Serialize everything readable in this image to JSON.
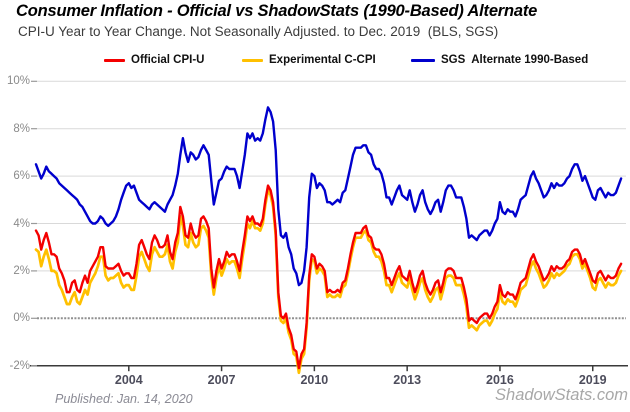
{
  "chart_data": {
    "type": "line",
    "title": "Consumer Inflation - Official vs ShadowStats (1990-Based) Alternate",
    "subtitle": "CPI-U Year to Year Change. Not Seasonally Adjusted. to Dec. 2019  (BLS, SGS)",
    "legend_position": "top",
    "grid": "horizontal-only",
    "x_start_year": 2001,
    "x_step_months": 1,
    "x_range_label": "Jan 2001 to Dec. 2019",
    "y_axis": {
      "min": -2,
      "max": 10,
      "step": 2,
      "unit": "%",
      "values": [
        10,
        8,
        6,
        4,
        2,
        0,
        -2
      ],
      "labels": [
        "10%",
        "8%",
        "6%",
        "4%",
        "2%",
        "0%",
        "-2%"
      ],
      "zero_line": 0
    },
    "x_axis": {
      "ticks": [
        {
          "label": "2004",
          "year": 2004
        },
        {
          "label": "2007",
          "year": 2007
        },
        {
          "label": "2010",
          "year": 2010
        },
        {
          "label": "2013",
          "year": 2013
        },
        {
          "label": "2016",
          "year": 2016
        },
        {
          "label": "2019",
          "year": 2019
        }
      ]
    },
    "series": [
      {
        "name": "Experimental C-CPI",
        "color": "#ffc000",
        "values": [
          2.9,
          2.8,
          2.2,
          2.6,
          2.9,
          2.5,
          2.0,
          2.0,
          1.9,
          1.4,
          1.2,
          0.9,
          0.6,
          0.6,
          0.9,
          1.1,
          0.7,
          0.6,
          0.9,
          1.2,
          1.0,
          1.5,
          1.7,
          1.9,
          2.2,
          2.6,
          2.6,
          1.8,
          1.6,
          1.7,
          1.7,
          1.8,
          1.9,
          1.5,
          1.3,
          1.4,
          1.4,
          1.2,
          1.2,
          1.8,
          2.6,
          2.8,
          2.5,
          2.2,
          2.0,
          2.7,
          3.0,
          2.8,
          2.6,
          2.6,
          2.7,
          3.1,
          2.4,
          2.1,
          2.8,
          3.2,
          4.3,
          3.9,
          3.1,
          3.0,
          3.6,
          3.2,
          3.0,
          3.1,
          3.8,
          3.9,
          3.7,
          3.4,
          1.8,
          1.0,
          1.7,
          2.2,
          1.8,
          2.1,
          2.5,
          2.3,
          2.4,
          2.4,
          2.1,
          1.7,
          2.5,
          3.2,
          4.0,
          3.8,
          4.1,
          3.8,
          3.8,
          3.7,
          4.0,
          4.8,
          5.4,
          5.2,
          4.7,
          3.5,
          0.9,
          -0.1,
          -0.2,
          0.0,
          -0.6,
          -0.9,
          -1.5,
          -1.6,
          -2.3,
          -1.7,
          -1.5,
          -0.4,
          1.6,
          2.5,
          2.4,
          1.9,
          2.1,
          2.0,
          1.8,
          0.9,
          1.0,
          0.9,
          0.9,
          1.0,
          0.9,
          1.3,
          1.4,
          1.9,
          2.5,
          3.0,
          3.4,
          3.4,
          3.4,
          3.6,
          3.7,
          3.3,
          3.2,
          2.8,
          2.6,
          2.6,
          2.4,
          2.0,
          1.4,
          1.4,
          1.1,
          1.4,
          1.7,
          1.9,
          1.5,
          1.4,
          1.3,
          1.7,
          1.2,
          0.8,
          1.1,
          1.5,
          1.7,
          1.2,
          0.9,
          0.7,
          0.9,
          1.2,
          1.3,
          0.8,
          1.2,
          1.7,
          1.8,
          1.8,
          1.7,
          1.4,
          1.4,
          1.4,
          1.0,
          0.5,
          -0.4,
          -0.3,
          -0.4,
          -0.5,
          -0.3,
          -0.2,
          -0.1,
          -0.1,
          -0.3,
          -0.1,
          0.2,
          0.4,
          1.1,
          0.7,
          0.6,
          0.8,
          0.7,
          0.7,
          0.5,
          0.8,
          1.2,
          1.3,
          1.4,
          1.8,
          2.2,
          2.4,
          2.1,
          1.9,
          1.6,
          1.3,
          1.4,
          1.6,
          1.9,
          1.7,
          1.9,
          1.8,
          1.9,
          2.0,
          2.2,
          2.3,
          2.6,
          2.7,
          2.7,
          2.5,
          2.1,
          2.3,
          2.0,
          1.7,
          1.3,
          1.2,
          1.6,
          1.7,
          1.5,
          1.3,
          1.5,
          1.4,
          1.4,
          1.5,
          1.8,
          2.0
        ]
      },
      {
        "name": "Official CPI-U",
        "color": "#f40000",
        "values": [
          3.7,
          3.5,
          2.9,
          3.3,
          3.6,
          3.2,
          2.7,
          2.7,
          2.6,
          2.1,
          1.9,
          1.6,
          1.1,
          1.1,
          1.5,
          1.6,
          1.2,
          1.1,
          1.5,
          1.8,
          1.5,
          2.0,
          2.2,
          2.4,
          2.6,
          3.0,
          3.0,
          2.2,
          2.1,
          2.1,
          2.1,
          2.2,
          2.3,
          2.0,
          1.8,
          1.9,
          1.9,
          1.7,
          1.7,
          2.3,
          3.1,
          3.3,
          3.0,
          2.7,
          2.5,
          3.2,
          3.5,
          3.3,
          3.0,
          3.0,
          3.1,
          3.5,
          2.8,
          2.5,
          3.2,
          3.6,
          4.7,
          4.3,
          3.5,
          3.4,
          4.0,
          3.6,
          3.4,
          3.5,
          4.2,
          4.3,
          4.1,
          3.8,
          2.1,
          1.3,
          2.0,
          2.5,
          2.1,
          2.4,
          2.8,
          2.6,
          2.7,
          2.7,
          2.4,
          2.0,
          2.8,
          3.5,
          4.3,
          4.1,
          4.3,
          4.0,
          4.0,
          3.9,
          4.2,
          5.0,
          5.6,
          5.4,
          4.9,
          3.7,
          1.1,
          0.1,
          0.0,
          0.2,
          -0.4,
          -0.7,
          -1.3,
          -1.4,
          -2.1,
          -1.5,
          -1.3,
          -0.2,
          1.8,
          2.7,
          2.6,
          2.1,
          2.3,
          2.2,
          2.0,
          1.1,
          1.2,
          1.1,
          1.1,
          1.2,
          1.1,
          1.5,
          1.6,
          2.1,
          2.7,
          3.2,
          3.6,
          3.6,
          3.6,
          3.8,
          3.9,
          3.5,
          3.4,
          3.0,
          2.9,
          2.9,
          2.7,
          2.3,
          1.7,
          1.7,
          1.4,
          1.7,
          2.0,
          2.2,
          1.8,
          1.7,
          1.6,
          2.0,
          1.5,
          1.1,
          1.4,
          1.8,
          2.0,
          1.5,
          1.2,
          1.0,
          1.2,
          1.5,
          1.6,
          1.1,
          1.5,
          2.0,
          2.1,
          2.1,
          2.0,
          1.7,
          1.7,
          1.7,
          1.3,
          0.8,
          -0.1,
          0.0,
          -0.1,
          -0.2,
          0.0,
          0.1,
          0.2,
          0.2,
          0.0,
          0.2,
          0.5,
          0.7,
          1.4,
          1.0,
          0.9,
          1.1,
          1.0,
          1.0,
          0.8,
          1.1,
          1.5,
          1.6,
          1.7,
          2.1,
          2.5,
          2.7,
          2.4,
          2.2,
          1.9,
          1.6,
          1.7,
          1.9,
          2.2,
          2.0,
          2.2,
          2.1,
          2.1,
          2.2,
          2.4,
          2.5,
          2.8,
          2.9,
          2.9,
          2.7,
          2.3,
          2.5,
          2.2,
          1.9,
          1.6,
          1.5,
          1.9,
          2.0,
          1.8,
          1.6,
          1.8,
          1.7,
          1.7,
          1.8,
          2.1,
          2.3
        ]
      },
      {
        "name": "SGS  Alternate 1990-Based",
        "color": "#0000cd",
        "values": [
          6.5,
          6.2,
          5.9,
          6.1,
          6.4,
          6.2,
          6.1,
          6.0,
          5.9,
          5.7,
          5.6,
          5.5,
          5.4,
          5.3,
          5.2,
          5.1,
          5.0,
          4.8,
          4.7,
          4.5,
          4.3,
          4.1,
          4.0,
          4.0,
          4.1,
          4.3,
          4.2,
          4.0,
          3.9,
          4.0,
          4.1,
          4.3,
          4.6,
          5.0,
          5.3,
          5.6,
          5.7,
          5.5,
          5.6,
          5.3,
          5.0,
          4.9,
          4.8,
          4.7,
          4.6,
          4.8,
          4.9,
          4.8,
          4.7,
          4.6,
          4.5,
          4.8,
          5.0,
          5.2,
          5.6,
          6.1,
          6.9,
          7.6,
          7.0,
          6.6,
          7.0,
          6.9,
          6.7,
          6.8,
          7.1,
          7.3,
          7.1,
          6.9,
          5.8,
          4.8,
          5.3,
          5.8,
          5.9,
          6.2,
          6.4,
          6.3,
          6.3,
          6.3,
          6.0,
          5.5,
          6.2,
          6.9,
          7.8,
          7.6,
          7.8,
          7.5,
          7.6,
          7.5,
          7.8,
          8.4,
          8.9,
          8.7,
          8.3,
          7.1,
          4.6,
          3.5,
          3.4,
          3.6,
          3.0,
          2.7,
          2.1,
          1.9,
          1.4,
          1.5,
          2.0,
          3.0,
          5.1,
          6.1,
          6.0,
          5.5,
          5.7,
          5.6,
          5.4,
          4.9,
          4.9,
          4.8,
          4.9,
          5.0,
          4.9,
          5.3,
          5.4,
          5.9,
          6.4,
          6.9,
          7.2,
          7.2,
          7.2,
          7.3,
          7.3,
          7.0,
          6.9,
          6.5,
          6.3,
          6.3,
          6.1,
          5.7,
          5.1,
          5.1,
          4.8,
          5.1,
          5.4,
          5.6,
          5.2,
          5.1,
          5.0,
          5.4,
          4.9,
          4.5,
          4.8,
          5.2,
          5.4,
          4.9,
          4.6,
          4.4,
          4.6,
          4.9,
          5.0,
          4.5,
          4.9,
          5.4,
          5.6,
          5.6,
          5.4,
          5.1,
          5.1,
          5.1,
          4.7,
          4.2,
          3.4,
          3.5,
          3.4,
          3.3,
          3.5,
          3.6,
          3.7,
          3.7,
          3.5,
          3.7,
          4.0,
          4.2,
          4.9,
          4.5,
          4.4,
          4.6,
          4.5,
          4.5,
          4.3,
          4.6,
          5.0,
          5.1,
          5.2,
          5.6,
          6.0,
          6.2,
          5.9,
          5.7,
          5.4,
          5.1,
          5.2,
          5.4,
          5.7,
          5.5,
          5.7,
          5.6,
          5.6,
          5.7,
          5.9,
          6.0,
          6.3,
          6.5,
          6.5,
          6.2,
          5.8,
          6.0,
          5.7,
          5.4,
          5.1,
          5.0,
          5.4,
          5.5,
          5.3,
          5.1,
          5.3,
          5.2,
          5.2,
          5.3,
          5.6,
          5.9
        ]
      }
    ]
  },
  "legend_order": [
    1,
    0,
    2
  ],
  "footer": {
    "published": "Published: Jan. 14, 2020",
    "watermark": "ShadowStats.com"
  },
  "colors": {
    "grid": "#d9d9d9",
    "zero_line": "#909090",
    "axis": "#3a3a3a",
    "tick": "#9a9a9a"
  }
}
